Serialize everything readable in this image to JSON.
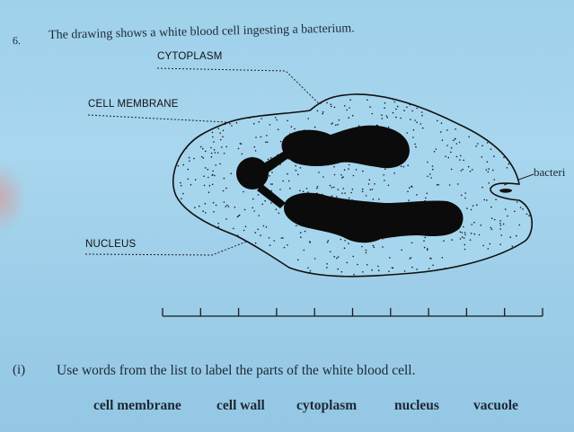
{
  "question": {
    "number": "6.",
    "text": "The drawing shows a white blood cell ingesting a bacterium."
  },
  "label_tags": {
    "cytoplasm": "CYTOPLASM",
    "cell_membrane": "CELL MEMBRANE",
    "nucleus": "NUCLEUS"
  },
  "diagram_labels": {
    "bacterium": "bacteri"
  },
  "part": {
    "number": "(i)",
    "instruction": "Use words from the list to label the parts of the white blood cell."
  },
  "word_list": [
    "cell membrane",
    "cell wall",
    "cytoplasm",
    "nucleus",
    "vacuole"
  ],
  "colors": {
    "paper": "#a3d4ec",
    "ink": "#111111"
  }
}
